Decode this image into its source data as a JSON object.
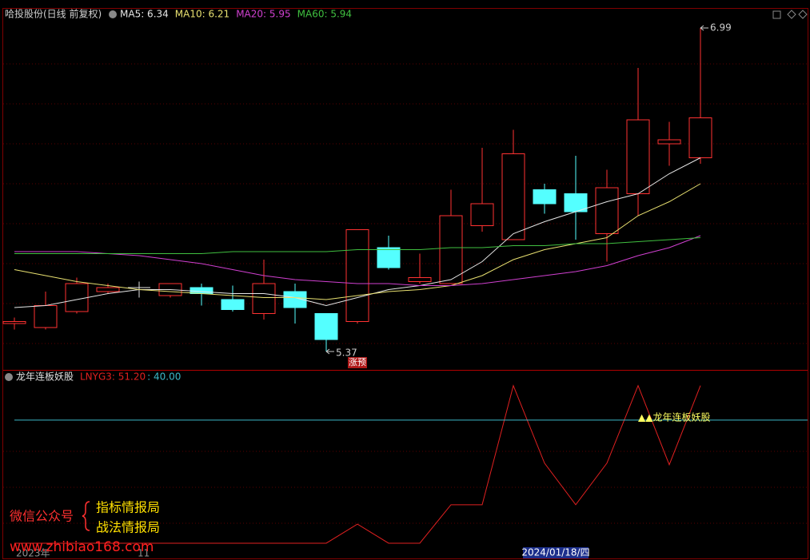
{
  "chart_data": [
    {
      "type": "candlestick",
      "title": "哈投股份(日线 前复权)",
      "open": [
        5.51,
        5.49,
        5.57,
        5.67,
        5.69,
        5.65,
        5.69,
        5.63,
        5.56,
        5.67,
        5.56,
        5.52,
        5.89,
        5.72,
        5.71,
        6.0,
        5.93,
        6.18,
        6.16,
        5.96,
        6.16,
        6.41,
        6.34
      ],
      "high": [
        5.54,
        5.67,
        5.74,
        5.71,
        5.72,
        5.71,
        5.71,
        5.7,
        5.83,
        5.71,
        5.56,
        5.98,
        5.95,
        5.86,
        6.18,
        6.39,
        6.48,
        6.21,
        6.35,
        6.28,
        6.79,
        6.52,
        6.99
      ],
      "low": [
        5.48,
        5.48,
        5.56,
        5.66,
        5.64,
        5.64,
        5.6,
        5.57,
        5.53,
        5.51,
        5.37,
        5.51,
        5.78,
        5.71,
        5.71,
        5.97,
        5.93,
        6.06,
        5.93,
        5.82,
        6.05,
        6.3,
        6.31
      ],
      "close": [
        5.52,
        5.6,
        5.71,
        5.69,
        5.69,
        5.71,
        5.66,
        5.58,
        5.71,
        5.59,
        5.43,
        5.98,
        5.79,
        5.74,
        6.05,
        6.11,
        6.36,
        6.11,
        6.07,
        6.19,
        6.53,
        6.43,
        6.54
      ],
      "up_color": "#ff3232",
      "down_color": "#54ffff",
      "flat_color": "#e0e0e0",
      "ylim": [
        5.282,
        7.058
      ],
      "max_label": "6.99",
      "min_label": "5.37",
      "signals": [
        {
          "label": "涨预",
          "at": 11
        }
      ],
      "series": [
        {
          "name": "MA5: 6.34",
          "color": "#e6e6e6",
          "values": [
            5.59,
            5.6,
            5.63,
            5.66,
            5.68,
            5.68,
            5.67,
            5.66,
            5.66,
            5.64,
            5.6,
            5.64,
            5.68,
            5.7,
            5.73,
            5.82,
            5.96,
            6.02,
            6.07,
            6.12,
            6.16,
            6.26,
            6.34
          ]
        },
        {
          "name": "MA10: 6.21",
          "color": "#e8e070",
          "values": [
            5.78,
            5.75,
            5.72,
            5.7,
            5.68,
            5.67,
            5.66,
            5.65,
            5.64,
            5.64,
            5.63,
            5.65,
            5.67,
            5.68,
            5.7,
            5.75,
            5.83,
            5.88,
            5.91,
            5.94,
            6.05,
            6.12,
            6.21
          ]
        },
        {
          "name": "MA20: 5.95",
          "color": "#d040d0",
          "values": [
            5.87,
            5.87,
            5.87,
            5.86,
            5.85,
            5.83,
            5.81,
            5.78,
            5.75,
            5.73,
            5.72,
            5.71,
            5.71,
            5.7,
            5.7,
            5.71,
            5.73,
            5.75,
            5.77,
            5.8,
            5.85,
            5.89,
            5.95
          ]
        },
        {
          "name": "MA60: 5.94",
          "color": "#40c040",
          "values": [
            5.86,
            5.86,
            5.86,
            5.86,
            5.86,
            5.86,
            5.86,
            5.87,
            5.87,
            5.87,
            5.87,
            5.88,
            5.88,
            5.88,
            5.89,
            5.89,
            5.9,
            5.9,
            5.91,
            5.91,
            5.92,
            5.93,
            5.94
          ]
        }
      ]
    },
    {
      "type": "line",
      "title": "龙年连板妖股",
      "ylim": [
        -2.6,
        55.8
      ],
      "series": [
        {
          "name": "LNYG3: 51.20",
          "color": "#e02020",
          "values": [
            0,
            0,
            0,
            0,
            0,
            0,
            0,
            0,
            0,
            0,
            0,
            6.2,
            0,
            0,
            12.5,
            12.5,
            51.2,
            26,
            12.5,
            26,
            51.2,
            25.5,
            51.2
          ]
        }
      ],
      "threshold": {
        "value": 40,
        "label": ": 40.00",
        "color": "#3cb8c8"
      },
      "signal": {
        "label": "▲▲龙年连板妖股",
        "at": 20
      }
    }
  ],
  "time_axis": {
    "labels": [
      "2023年",
      "11"
    ],
    "cursor": "2024/01/18/四"
  },
  "watermark": {
    "account": "微信公众号",
    "names": [
      "指标情报局",
      "战法情报局"
    ],
    "site": "www.zhibiao168.com"
  }
}
